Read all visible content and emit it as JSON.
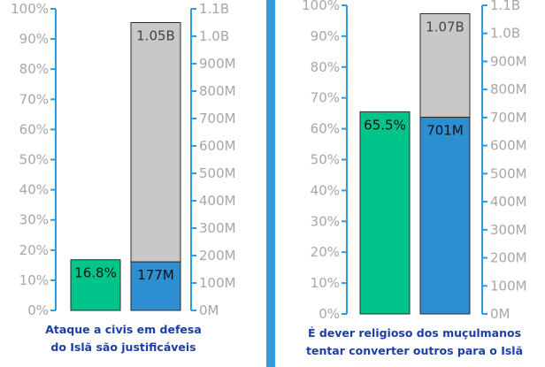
{
  "colors": {
    "axis": "#2E9BE0",
    "percent_bar": "#00C58A",
    "count_bar": "#2E8FD0",
    "total_bar": "#C8C8C8",
    "divider": "#2E9BE0",
    "caption": "#1A3FA8",
    "tick_text": "#A7A7A7"
  },
  "chart_data": [
    {
      "type": "bar",
      "caption_lines": [
        "Ataque a civis em defesa",
        "do Islã são justificáveis"
      ],
      "left_axis": {
        "ylim": [
          0,
          100
        ],
        "ticks": [
          0,
          10,
          20,
          30,
          40,
          50,
          60,
          70,
          80,
          90,
          100
        ],
        "tick_labels": [
          "0%",
          "10%",
          "20%",
          "30%",
          "40%",
          "50%",
          "60%",
          "70%",
          "80%",
          "90%",
          "100%"
        ]
      },
      "right_axis": {
        "ylim": [
          0,
          1.1
        ],
        "unit": "billions",
        "ticks": [
          0,
          0.1,
          0.2,
          0.3,
          0.4,
          0.5,
          0.6,
          0.7,
          0.8,
          0.9,
          1.0,
          1.1
        ],
        "tick_labels": [
          "0M",
          "100M",
          "200M",
          "300M",
          "400M",
          "500M",
          "600M",
          "700M",
          "800M",
          "900M",
          "1.0B",
          "1.1B"
        ]
      },
      "percent_bar": {
        "value": 16.8,
        "label": "16.8%"
      },
      "count_bar": {
        "value": 0.177,
        "label": "177M"
      },
      "total_bar": {
        "value": 1.05,
        "label": "1.05B"
      }
    },
    {
      "type": "bar",
      "caption_lines": [
        "É dever religioso dos muçulmanos",
        "tentar converter outros para o Islã"
      ],
      "left_axis": {
        "ylim": [
          0,
          100
        ],
        "ticks": [
          0,
          10,
          20,
          30,
          40,
          50,
          60,
          70,
          80,
          90,
          100
        ],
        "tick_labels": [
          "0%",
          "10%",
          "20%",
          "30%",
          "40%",
          "50%",
          "60%",
          "70%",
          "80%",
          "90%",
          "100%"
        ]
      },
      "right_axis": {
        "ylim": [
          0,
          1.1
        ],
        "unit": "billions",
        "ticks": [
          0,
          0.1,
          0.2,
          0.3,
          0.4,
          0.5,
          0.6,
          0.7,
          0.8,
          0.9,
          1.0,
          1.1
        ],
        "tick_labels": [
          "0M",
          "100M",
          "200M",
          "300M",
          "400M",
          "500M",
          "600M",
          "700M",
          "800M",
          "900M",
          "1.0B",
          "1.1B"
        ]
      },
      "percent_bar": {
        "value": 65.5,
        "label": "65.5%"
      },
      "count_bar": {
        "value": 0.701,
        "label": "701M"
      },
      "total_bar": {
        "value": 1.07,
        "label": "1.07B"
      }
    }
  ]
}
